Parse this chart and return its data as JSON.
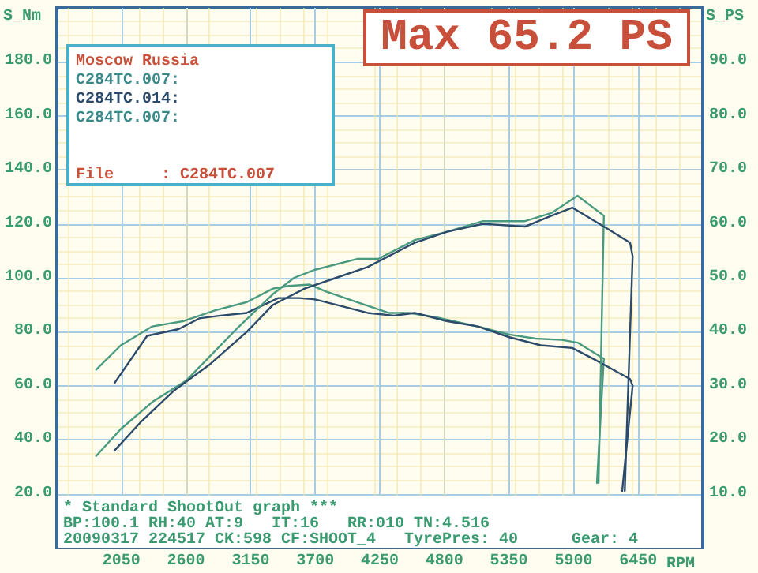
{
  "chart_data": {
    "type": "line",
    "title": "Max 65.2 PS",
    "xlabel": "RPM",
    "ylabel": "S_Nm",
    "y2label": "S_PS",
    "annotations": [
      "Moscow Russia",
      "C284TC.007:",
      "C284TC.014:",
      "C284TC.007:",
      "File     : C284TC.007",
      "* Standard ShootOut graph ***",
      "BP:100.1 RH:40 AT:9   IT:16   RR:010 TN:4.516",
      "20090317 224517 CK:598 CF:SHOOT_4   TyrePres: 40",
      "Gear: 4"
    ],
    "xlim": [
      1500,
      7000
    ],
    "xticks": [
      2050,
      2600,
      3150,
      3700,
      4250,
      4800,
      5350,
      5900,
      6450
    ],
    "ylim": [
      0,
      200
    ],
    "yticks": [
      {
        "value": 20,
        "label": "20.0"
      },
      {
        "value": 40,
        "label": "40.0"
      },
      {
        "value": 60,
        "label": "60.0"
      },
      {
        "value": 80,
        "label": "80.0"
      },
      {
        "value": 100,
        "label": "100.0"
      },
      {
        "value": 120,
        "label": "120.0"
      },
      {
        "value": 140,
        "label": "140.0"
      },
      {
        "value": 160,
        "label": "160.0"
      },
      {
        "value": 180,
        "label": "180.0"
      }
    ],
    "y2lim": [
      0,
      100
    ],
    "y2ticks": [
      {
        "value": 10,
        "label": "10.0"
      },
      {
        "value": 20,
        "label": "20.0"
      },
      {
        "value": 30,
        "label": "30.0"
      },
      {
        "value": 40,
        "label": "40.0"
      },
      {
        "value": 50,
        "label": "50.0"
      },
      {
        "value": 60,
        "label": "60.0"
      },
      {
        "value": 70,
        "label": "70.0"
      },
      {
        "value": 80,
        "label": "80.0"
      },
      {
        "value": 90,
        "label": "90.0"
      }
    ],
    "grid": true,
    "marker": "none",
    "line_style": "solid",
    "series": [
      {
        "color": "#4a9a80",
        "x": [
          1835,
          2045,
          2313,
          2582,
          2716,
          2850,
          3118,
          3341,
          3476,
          3654,
          3788,
          4057,
          4325,
          4504,
          4772,
          5085,
          5353,
          5576,
          5800,
          5934,
          6158,
          6099
        ],
        "values": [
          66,
          75,
          82,
          84,
          86,
          88,
          91,
          96,
          97,
          97.5,
          95,
          91,
          87,
          87,
          85,
          82,
          79,
          77.5,
          77,
          76,
          70,
          24
        ]
      },
      {
        "color": "#2c4a6a",
        "x": [
          1991,
          2269,
          2537,
          2716,
          2894,
          3118,
          3386,
          3565,
          3699,
          3878,
          4146,
          4370,
          4548,
          4817,
          5085,
          5353,
          5621,
          5889,
          6068,
          6381,
          6403,
          6314
        ],
        "values": [
          61,
          78.5,
          81,
          85,
          86,
          87,
          92.5,
          92.5,
          92,
          90,
          87,
          86,
          87,
          84,
          82,
          78,
          75,
          74,
          70,
          62.5,
          60,
          21
        ]
      },
      {
        "color": "#4a9a80",
        "axis": "y2",
        "x": [
          1835,
          2045,
          2313,
          2604,
          2805,
          3029,
          3341,
          3520,
          3699,
          4057,
          4235,
          4548,
          4817,
          5129,
          5487,
          5711,
          5934,
          6158,
          6113
        ],
        "values": [
          17,
          22,
          27,
          31,
          35.5,
          40.5,
          47,
          50,
          51.5,
          53.5,
          53.5,
          57,
          58.5,
          60.5,
          60.5,
          62,
          65.2,
          61.5,
          12
        ]
      },
      {
        "color": "#2c4a6a",
        "axis": "y2",
        "x": [
          1991,
          2224,
          2492,
          2805,
          3118,
          3341,
          3610,
          3878,
          4146,
          4548,
          4817,
          5129,
          5487,
          5711,
          5889,
          6158,
          6381,
          6403,
          6336
        ],
        "values": [
          18,
          23.5,
          29,
          34,
          40,
          45,
          48,
          50,
          52,
          56.5,
          58.5,
          60,
          59.5,
          61.5,
          63,
          59.5,
          56.5,
          54,
          10.5
        ]
      }
    ]
  }
}
